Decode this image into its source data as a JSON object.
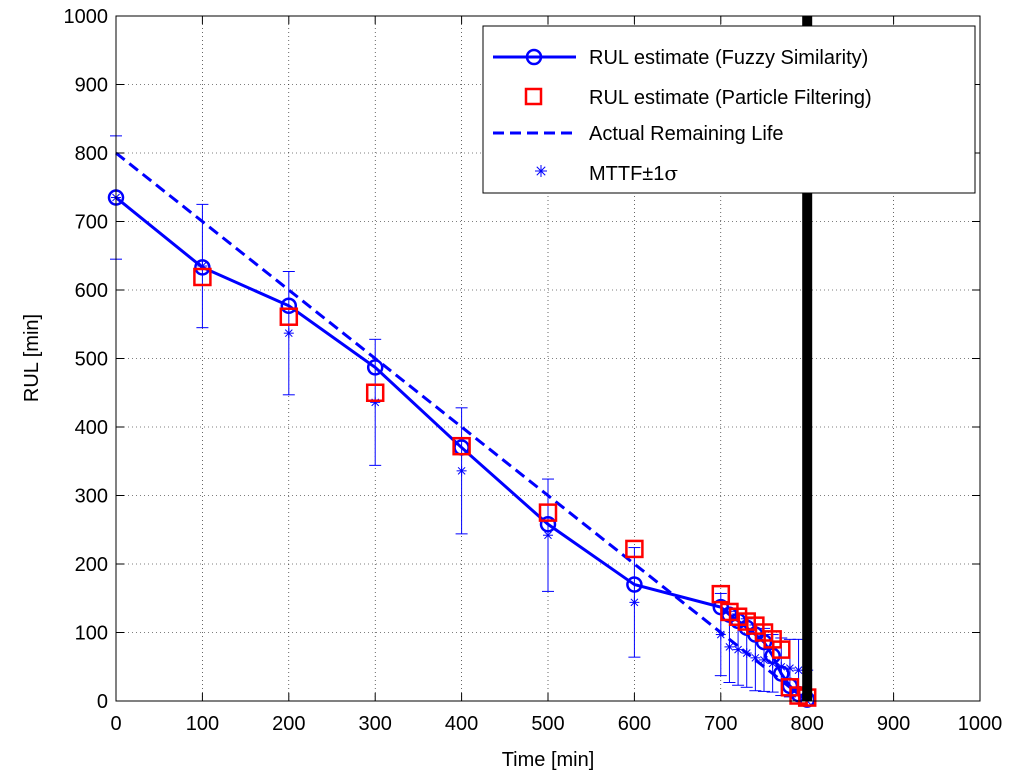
{
  "chart_data": {
    "type": "line",
    "title": "",
    "xlabel": "Time [min]",
    "ylabel": "RUL [min]",
    "xlim": [
      0,
      1000
    ],
    "ylim": [
      0,
      1000
    ],
    "grid": true,
    "xticks": [
      "0",
      "100",
      "200",
      "300",
      "400",
      "500",
      "600",
      "700",
      "800",
      "900",
      "1000"
    ],
    "yticks": [
      "0",
      "100",
      "200",
      "300",
      "400",
      "500",
      "600",
      "700",
      "800",
      "900",
      "1000"
    ],
    "legend_position": "top-right",
    "legend_sigma_symbol": "σ",
    "end_of_life_time": 800,
    "series": [
      {
        "name": "RUL estimate (Fuzzy Similarity)",
        "style": "solid-line-circle-markers",
        "color": "#0000ff",
        "x": [
          0,
          100,
          200,
          300,
          400,
          500,
          600,
          700,
          710,
          720,
          730,
          740,
          750,
          760,
          770,
          780,
          790,
          800
        ],
        "y": [
          735,
          633,
          577,
          487,
          370,
          258,
          170,
          137,
          126,
          117,
          107,
          97,
          86,
          66,
          40,
          22,
          10,
          2
        ]
      },
      {
        "name": "RUL estimate (Particle Filtering)",
        "style": "square-markers",
        "color": "#ff0000",
        "x": [
          100,
          200,
          300,
          400,
          500,
          600,
          700,
          710,
          720,
          730,
          740,
          750,
          760,
          770,
          780,
          790,
          800
        ],
        "y": [
          619,
          561,
          450,
          372,
          275,
          222,
          156,
          130,
          123,
          116,
          110,
          100,
          90,
          75,
          20,
          8,
          5
        ]
      },
      {
        "name": "Actual Remaining Life",
        "style": "dashed-line",
        "color": "#0000ff",
        "x": [
          0,
          800
        ],
        "y": [
          800,
          0
        ]
      },
      {
        "name": "MTTF±1σ",
        "label_prefix": "MTTF±1",
        "style": "asterisk-markers-with-errorbars",
        "color": "#0000ff",
        "x": [
          0,
          100,
          200,
          300,
          400,
          500,
          600,
          700,
          710,
          720,
          730,
          740,
          750,
          760,
          770,
          780,
          790,
          800
        ],
        "y": [
          735,
          635,
          537,
          436,
          336,
          242,
          144,
          97,
          79,
          75,
          70,
          63,
          60,
          55,
          50,
          48,
          45,
          0
        ],
        "err": [
          90,
          90,
          90,
          92,
          92,
          82,
          80,
          60,
          52,
          52,
          50,
          48,
          46,
          42,
          42,
          42,
          45,
          45
        ]
      }
    ]
  }
}
